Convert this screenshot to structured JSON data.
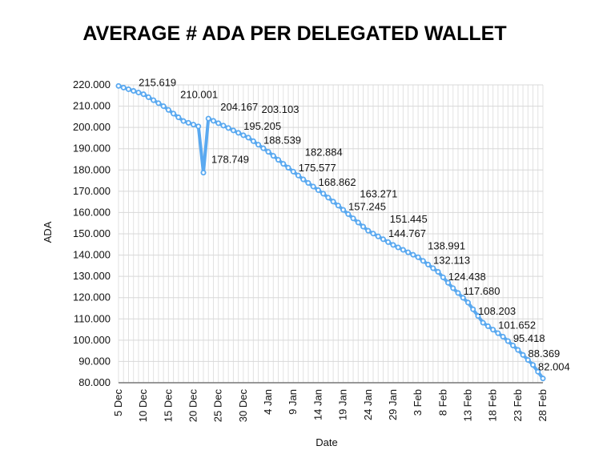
{
  "chart_data": {
    "type": "line",
    "title": "AVERAGE # ADA PER DELEGATED WALLET",
    "xlabel": "Date",
    "ylabel": "ADA",
    "ylim": [
      80,
      220
    ],
    "yticks": [
      80,
      90,
      100,
      110,
      120,
      130,
      140,
      150,
      160,
      170,
      180,
      190,
      200,
      210,
      220
    ],
    "ytick_format_decimals": 3,
    "grid": true,
    "x_start": "5 Dec",
    "x_end": "28 Feb",
    "xtick_labels": [
      {
        "index": 0,
        "label": "5 Dec"
      },
      {
        "index": 5,
        "label": "10 Dec"
      },
      {
        "index": 10,
        "label": "15 Dec"
      },
      {
        "index": 15,
        "label": "20 Dec"
      },
      {
        "index": 20,
        "label": "25 Dec"
      },
      {
        "index": 25,
        "label": "30 Dec"
      },
      {
        "index": 30,
        "label": "4 Jan"
      },
      {
        "index": 35,
        "label": "9 Jan"
      },
      {
        "index": 40,
        "label": "14 Jan"
      },
      {
        "index": 45,
        "label": "19 Jan"
      },
      {
        "index": 50,
        "label": "24 Jan"
      },
      {
        "index": 55,
        "label": "29 Jan"
      },
      {
        "index": 60,
        "label": "3 Feb"
      },
      {
        "index": 65,
        "label": "8 Feb"
      },
      {
        "index": 70,
        "label": "13 Feb"
      },
      {
        "index": 75,
        "label": "18 Feb"
      },
      {
        "index": 80,
        "label": "23 Feb"
      },
      {
        "index": 85,
        "label": "28 Feb"
      }
    ],
    "series": [
      {
        "name": "Average ADA per delegated wallet",
        "color": "#5aa9f0",
        "values": [
          219.5,
          218.72,
          217.95,
          217.17,
          216.4,
          215.619,
          214.22,
          212.81,
          211.41,
          210.001,
          208.25,
          206.5,
          204.75,
          203.0,
          202.17,
          201.33,
          200.5,
          178.749,
          204.167,
          203.103,
          201.97,
          200.85,
          199.72,
          198.59,
          197.46,
          196.33,
          195.205,
          193.54,
          191.87,
          190.21,
          188.539,
          186.65,
          184.77,
          182.884,
          181.06,
          179.23,
          177.4,
          175.577,
          173.9,
          172.22,
          170.54,
          168.862,
          167.0,
          165.14,
          163.271,
          161.26,
          159.25,
          157.245,
          155.31,
          153.38,
          151.445,
          150.11,
          148.78,
          147.44,
          146.1,
          144.767,
          143.61,
          142.46,
          141.3,
          140.15,
          138.991,
          137.27,
          135.55,
          133.83,
          132.113,
          129.55,
          127.0,
          124.438,
          122.19,
          119.93,
          117.68,
          114.52,
          111.36,
          108.203,
          106.57,
          104.93,
          103.29,
          101.652,
          99.57,
          97.5,
          95.418,
          93.07,
          90.72,
          88.369,
          85.19,
          82.004
        ]
      }
    ],
    "data_labels": [
      {
        "index": 5,
        "text": "215.619"
      },
      {
        "index": 9,
        "text": "210.001"
      },
      {
        "index": 18,
        "text": "204.167"
      },
      {
        "index": 17,
        "text": "178.749",
        "side": "right"
      },
      {
        "index": 19,
        "text": "203.103"
      },
      {
        "index": 26,
        "text": "195.205"
      },
      {
        "index": 30,
        "text": "188.539"
      },
      {
        "index": 33,
        "text": "182.884"
      },
      {
        "index": 37,
        "text": "175.577"
      },
      {
        "index": 41,
        "text": "168.862"
      },
      {
        "index": 44,
        "text": "163.271"
      },
      {
        "index": 47,
        "text": "157.245"
      },
      {
        "index": 50,
        "text": "151.445"
      },
      {
        "index": 55,
        "text": "144.767"
      },
      {
        "index": 60,
        "text": "138.991"
      },
      {
        "index": 64,
        "text": "132.113"
      },
      {
        "index": 67,
        "text": "124.438"
      },
      {
        "index": 70,
        "text": "117.680"
      },
      {
        "index": 73,
        "text": "108.203"
      },
      {
        "index": 77,
        "text": "101.652"
      },
      {
        "index": 80,
        "text": "95.418"
      },
      {
        "index": 83,
        "text": "88.369"
      },
      {
        "index": 85,
        "text": "82.004"
      }
    ]
  }
}
